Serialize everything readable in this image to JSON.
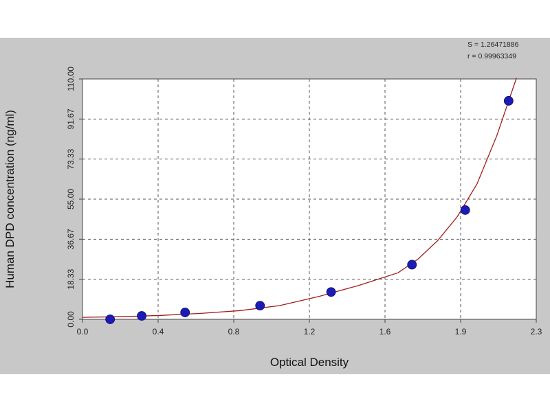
{
  "chart_data": {
    "type": "scatter",
    "title": "",
    "xlabel": "Optical Density",
    "ylabel": "Human DPD concentration (ng/ml)",
    "xlim": [
      0.0,
      2.3
    ],
    "ylim": [
      0.0,
      110.0
    ],
    "x_ticks": [
      "0.0",
      "0.4",
      "0.8",
      "1.2",
      "1.6",
      "1.9",
      "2.3"
    ],
    "y_ticks": [
      "0.00",
      "18.33",
      "36.67",
      "55.00",
      "73.33",
      "91.67",
      "110.00"
    ],
    "grid": true,
    "stats": {
      "s_text": "S = 1.26471886",
      "r_text": "r = 0.99963349"
    },
    "series": [
      {
        "points": [
          {
            "x": 0.14,
            "y": 0.0
          },
          {
            "x": 0.3,
            "y": 1.56
          },
          {
            "x": 0.52,
            "y": 3.13
          },
          {
            "x": 0.9,
            "y": 6.25
          },
          {
            "x": 1.26,
            "y": 12.5
          },
          {
            "x": 1.67,
            "y": 25.0
          },
          {
            "x": 1.94,
            "y": 50.0
          },
          {
            "x": 2.16,
            "y": 100.0
          }
        ],
        "color": "#1c1cb4"
      }
    ],
    "fit_curve": {
      "color": "#a01c1c",
      "x": [
        0.0,
        0.2,
        0.4,
        0.6,
        0.8,
        1.0,
        1.2,
        1.4,
        1.6,
        1.7,
        1.8,
        1.9,
        2.0,
        2.1,
        2.2
      ],
      "y": [
        0.9,
        1.2,
        1.8,
        2.7,
        4.0,
        6.3,
        10.5,
        15.5,
        21.3,
        27.5,
        36.0,
        47.0,
        62.0,
        84.0,
        110.5
      ]
    }
  }
}
